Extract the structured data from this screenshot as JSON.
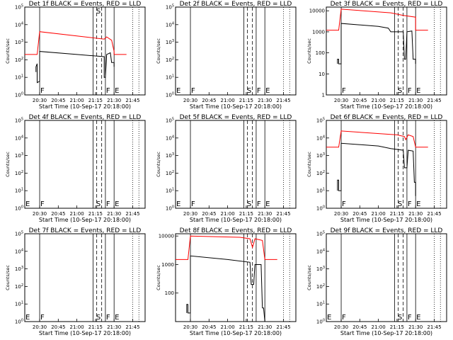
{
  "page": {
    "background": "#ffffff"
  },
  "colors": {
    "events": "#000000",
    "lld": "#ff0000",
    "frame": "#000000"
  },
  "chart_data": [
    {
      "type": "line",
      "title": "Det 1f BLACK = Events, RED = LLD",
      "xlabel": "Start Time (10-Sep-17 20:18:00)",
      "ylabel": "Counts/sec",
      "x_ticks": [
        "20:30",
        "20:45",
        "21:00",
        "21:15",
        "21:30",
        "21:45"
      ],
      "y_ticks": [
        "10^0",
        "10^1",
        "10^2",
        "10^3",
        "10^4",
        "10^5"
      ],
      "ylim": [
        1,
        100000
      ],
      "yscale": "log",
      "markers": [
        {
          "label": "F",
          "time": "20:30"
        },
        {
          "label": "S",
          "time": "21:15"
        },
        {
          "label": "F",
          "time": "21:23"
        },
        {
          "label": "E",
          "time": "21:30"
        }
      ],
      "series": [
        {
          "key": "events",
          "points": [
            [
              "20:27",
              20
            ],
            [
              "20:27",
              40
            ],
            [
              "20:28",
              60
            ],
            [
              "20:28",
              5
            ],
            [
              "20:30",
              6
            ],
            [
              "20:30",
              300
            ],
            [
              "21:00",
              200
            ],
            [
              "21:22",
              150
            ],
            [
              "21:22",
              10
            ],
            [
              "21:23",
              10
            ],
            [
              "21:24",
              200
            ],
            [
              "21:27",
              250
            ],
            [
              "21:28",
              70
            ],
            [
              "21:30",
              70
            ],
            [
              "21:30",
              40
            ]
          ]
        },
        {
          "key": "lld",
          "points": [
            [
              "20:18",
              200
            ],
            [
              "20:28",
              200
            ],
            [
              "20:30",
              4000
            ],
            [
              "21:22",
              1500
            ],
            [
              "21:24",
              2000
            ],
            [
              "21:28",
              1300
            ],
            [
              "21:30",
              300
            ],
            [
              "21:30",
              200
            ],
            [
              "21:40",
              200
            ]
          ]
        }
      ]
    },
    {
      "type": "line",
      "title": "Det 2f BLACK = Events, RED = LLD",
      "xlabel": "Start Time (10-Sep-17 20:18:00)",
      "ylabel": "Counts/sec",
      "x_ticks": [
        "20:30",
        "20:45",
        "21:00",
        "21:15",
        "21:30",
        "21:45"
      ],
      "y_ticks": [
        "10^0",
        "10^1",
        "10^2",
        "10^3",
        "10^4",
        "10^5"
      ],
      "ylim": [
        1,
        100000
      ],
      "yscale": "log",
      "markers": [
        {
          "label": "E",
          "time": "20:18"
        },
        {
          "label": "F",
          "time": "20:30"
        },
        {
          "label": "S",
          "time": "21:15"
        },
        {
          "label": "F",
          "time": "21:23"
        },
        {
          "label": "E",
          "time": "21:30"
        }
      ],
      "series": []
    },
    {
      "type": "line",
      "title": "Det 3f BLACK = Events, RED = LLD",
      "xlabel": "Start Time (10-Sep-17 20:18:00)",
      "ylabel": "Counts/sec",
      "x_ticks": [
        "20:30",
        "20:45",
        "21:00",
        "21:15",
        "21:30",
        "21:45"
      ],
      "y_ticks": [
        "1",
        "10",
        "100",
        "1000",
        "10000"
      ],
      "ylim": [
        1,
        15000
      ],
      "yscale": "log",
      "markers": [
        {
          "label": "F",
          "time": "20:30"
        },
        {
          "label": "S",
          "time": "21:15"
        },
        {
          "label": "F",
          "time": "21:23"
        },
        {
          "label": "E",
          "time": "21:30"
        }
      ],
      "series": [
        {
          "key": "events",
          "points": [
            [
              "20:27",
              30
            ],
            [
              "20:27",
              50
            ],
            [
              "20:28",
              50
            ],
            [
              "20:28",
              30
            ],
            [
              "20:30",
              30
            ],
            [
              "20:30",
              2500
            ],
            [
              "21:00",
              1800
            ],
            [
              "21:08",
              1500
            ],
            [
              "21:10",
              1000
            ],
            [
              "21:15",
              1000
            ],
            [
              "21:20",
              1000
            ],
            [
              "21:21",
              50
            ],
            [
              "21:22",
              50
            ],
            [
              "21:23",
              1000
            ],
            [
              "21:27",
              1100
            ],
            [
              "21:28",
              50
            ],
            [
              "21:30",
              50
            ],
            [
              "21:30",
              30
            ]
          ]
        },
        {
          "key": "lld",
          "points": [
            [
              "20:18",
              1200
            ],
            [
              "20:28",
              1200
            ],
            [
              "20:30",
              12000
            ],
            [
              "21:10",
              8000
            ],
            [
              "21:20",
              6000
            ],
            [
              "21:30",
              5000
            ],
            [
              "21:30",
              1200
            ],
            [
              "21:40",
              1200
            ]
          ]
        }
      ]
    },
    {
      "type": "line",
      "title": "Det 4f BLACK = Events, RED = LLD",
      "xlabel": "Start Time (10-Sep-17 20:18:00)",
      "ylabel": "Counts/sec",
      "x_ticks": [
        "20:30",
        "20:45",
        "21:00",
        "21:15",
        "21:30",
        "21:45"
      ],
      "y_ticks": [
        "10^0",
        "10^1",
        "10^2",
        "10^3",
        "10^4",
        "10^5"
      ],
      "ylim": [
        1,
        100000
      ],
      "yscale": "log",
      "markers": [
        {
          "label": "E",
          "time": "20:18"
        },
        {
          "label": "F",
          "time": "20:30"
        },
        {
          "label": "S",
          "time": "21:15"
        },
        {
          "label": "F",
          "time": "21:23"
        },
        {
          "label": "E",
          "time": "21:30"
        }
      ],
      "series": []
    },
    {
      "type": "line",
      "title": "Det 5f BLACK = Events, RED = LLD",
      "xlabel": "Start Time (10-Sep-17 20:18:00)",
      "ylabel": "Counts/sec",
      "x_ticks": [
        "20:30",
        "20:45",
        "21:00",
        "21:15",
        "21:30",
        "21:45"
      ],
      "y_ticks": [
        "10^0",
        "10^1",
        "10^2",
        "10^3",
        "10^4",
        "10^5"
      ],
      "ylim": [
        1,
        100000
      ],
      "yscale": "log",
      "markers": [
        {
          "label": "E",
          "time": "20:18"
        },
        {
          "label": "F",
          "time": "20:30"
        },
        {
          "label": "S",
          "time": "21:15"
        },
        {
          "label": "F",
          "time": "21:23"
        },
        {
          "label": "E",
          "time": "21:30"
        }
      ],
      "series": []
    },
    {
      "type": "line",
      "title": "Det 6f BLACK = Events, RED = LLD",
      "xlabel": "Start Time (10-Sep-17 20:18:00)",
      "ylabel": "Counts/sec",
      "x_ticks": [
        "20:30",
        "20:45",
        "21:00",
        "21:15",
        "21:30",
        "21:45"
      ],
      "y_ticks": [
        "10^0",
        "10^1",
        "10^2",
        "10^3",
        "10^4",
        "10^5"
      ],
      "ylim": [
        1,
        100000
      ],
      "yscale": "log",
      "markers": [
        {
          "label": "F",
          "time": "20:30"
        },
        {
          "label": "S",
          "time": "21:15"
        },
        {
          "label": "F",
          "time": "21:23"
        },
        {
          "label": "E",
          "time": "21:30"
        }
      ],
      "series": [
        {
          "key": "events",
          "points": [
            [
              "20:27",
              10
            ],
            [
              "20:27",
              40
            ],
            [
              "20:28",
              40
            ],
            [
              "20:28",
              10
            ],
            [
              "20:30",
              10
            ],
            [
              "20:30",
              5000
            ],
            [
              "21:00",
              3500
            ],
            [
              "21:10",
              2500
            ],
            [
              "21:20",
              2000
            ],
            [
              "21:21",
              200
            ],
            [
              "21:23",
              200
            ],
            [
              "21:24",
              2000
            ],
            [
              "21:28",
              1800
            ],
            [
              "21:29",
              30
            ],
            [
              "21:30",
              30
            ],
            [
              "21:30",
              5
            ]
          ]
        },
        {
          "key": "lld",
          "points": [
            [
              "20:18",
              3000
            ],
            [
              "20:28",
              3000
            ],
            [
              "20:30",
              25000
            ],
            [
              "21:15",
              15000
            ],
            [
              "21:21",
              12000
            ],
            [
              "21:22",
              8000
            ],
            [
              "21:24",
              15000
            ],
            [
              "21:28",
              12000
            ],
            [
              "21:30",
              3000
            ],
            [
              "21:40",
              3000
            ]
          ]
        }
      ]
    },
    {
      "type": "line",
      "title": "Det 7f BLACK = Events, RED = LLD",
      "xlabel": "Start Time (10-Sep-17 20:18:00)",
      "ylabel": "Counts/sec",
      "x_ticks": [
        "20:30",
        "20:45",
        "21:00",
        "21:15",
        "21:30",
        "21:45"
      ],
      "y_ticks": [
        "10^0",
        "10^1",
        "10^2",
        "10^3",
        "10^4",
        "10^5"
      ],
      "ylim": [
        1,
        100000
      ],
      "yscale": "log",
      "markers": [
        {
          "label": "E",
          "time": "20:18"
        },
        {
          "label": "F",
          "time": "20:30"
        },
        {
          "label": "S",
          "time": "21:15"
        },
        {
          "label": "F",
          "time": "21:23"
        },
        {
          "label": "E",
          "time": "21:30"
        }
      ],
      "series": []
    },
    {
      "type": "line",
      "title": "Det 8f BLACK = Events, RED = LLD",
      "xlabel": "Start Time (10-Sep-17 20:18:00)",
      "ylabel": "Counts/sec",
      "x_ticks": [
        "20:30",
        "20:45",
        "21:00",
        "21:15",
        "21:30",
        "21:45"
      ],
      "y_ticks": [
        "100",
        "1000",
        "10000"
      ],
      "ylim": [
        10,
        12000
      ],
      "yscale": "log",
      "markers": [],
      "series": [
        {
          "key": "events",
          "points": [
            [
              "20:27",
              20
            ],
            [
              "20:27",
              40
            ],
            [
              "20:28",
              40
            ],
            [
              "20:28",
              20
            ],
            [
              "20:30",
              20
            ],
            [
              "20:30",
              2000
            ],
            [
              "21:00",
              1500
            ],
            [
              "21:18",
              1200
            ],
            [
              "21:19",
              200
            ],
            [
              "21:21",
              200
            ],
            [
              "21:22",
              1000
            ],
            [
              "21:27",
              1000
            ],
            [
              "21:28",
              30
            ],
            [
              "21:29",
              30
            ],
            [
              "21:30",
              10
            ]
          ]
        },
        {
          "key": "lld",
          "points": [
            [
              "20:18",
              1500
            ],
            [
              "20:28",
              1500
            ],
            [
              "20:30",
              10000
            ],
            [
              "21:10",
              9000
            ],
            [
              "21:18",
              8000
            ],
            [
              "21:20",
              4000
            ],
            [
              "21:22",
              8000
            ],
            [
              "21:28",
              7000
            ],
            [
              "21:30",
              1500
            ],
            [
              "21:40",
              1500
            ]
          ]
        }
      ]
    },
    {
      "type": "line",
      "title": "Det 9f BLACK = Events, RED = LLD",
      "xlabel": "Start Time (10-Sep-17 20:18:00)",
      "ylabel": "Counts/sec",
      "x_ticks": [
        "20:30",
        "20:45",
        "21:00",
        "21:15",
        "21:30",
        "21:45"
      ],
      "y_ticks": [
        "10^0",
        "10^1",
        "10^2",
        "10^3",
        "10^4",
        "10^5"
      ],
      "ylim": [
        1,
        100000
      ],
      "yscale": "log",
      "markers": [
        {
          "label": "E",
          "time": "20:18"
        },
        {
          "label": "F",
          "time": "20:30"
        },
        {
          "label": "S",
          "time": "21:15"
        },
        {
          "label": "F",
          "time": "21:23"
        },
        {
          "label": "E",
          "time": "21:30"
        }
      ],
      "series": []
    }
  ]
}
